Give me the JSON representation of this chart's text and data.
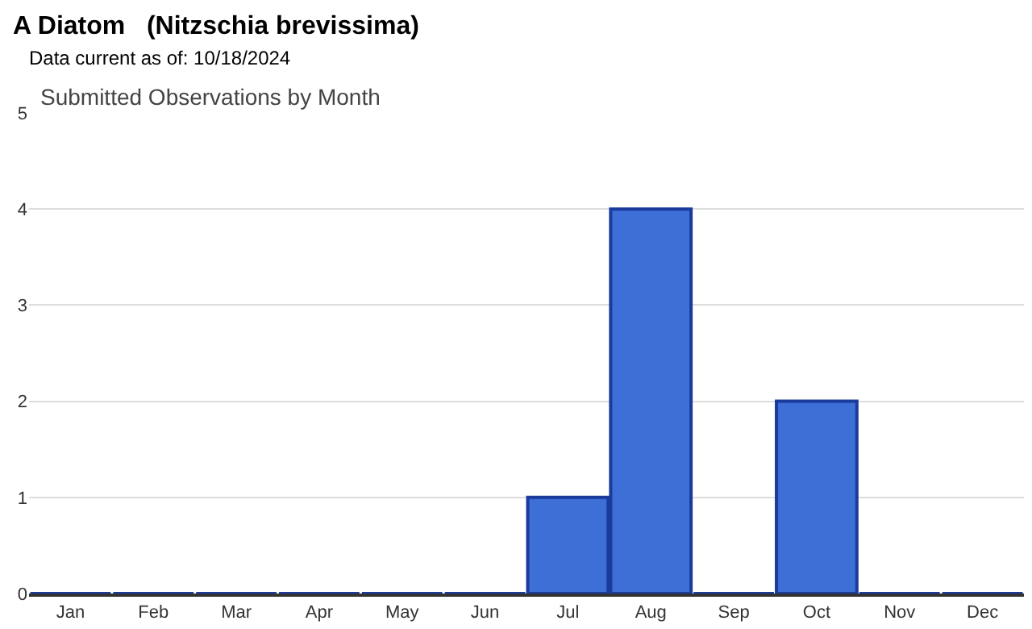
{
  "chart_data": {
    "type": "bar",
    "title": "A Diatom   (Nitzschia brevissima)",
    "subtitle": "Data current as of: 10/18/2024",
    "annotations": [
      "Submitted Observations by Month"
    ],
    "categories": [
      "Jan",
      "Feb",
      "Mar",
      "Apr",
      "May",
      "Jun",
      "Jul",
      "Aug",
      "Sep",
      "Oct",
      "Nov",
      "Dec"
    ],
    "values": [
      0,
      0,
      0,
      0,
      0,
      0,
      1,
      4,
      0,
      2,
      0,
      0
    ],
    "color": "#3d6fd6",
    "ylim": [
      0,
      5
    ],
    "yticks": [
      0,
      1,
      2,
      3,
      4,
      5
    ],
    "grid": "y",
    "legend": false
  }
}
